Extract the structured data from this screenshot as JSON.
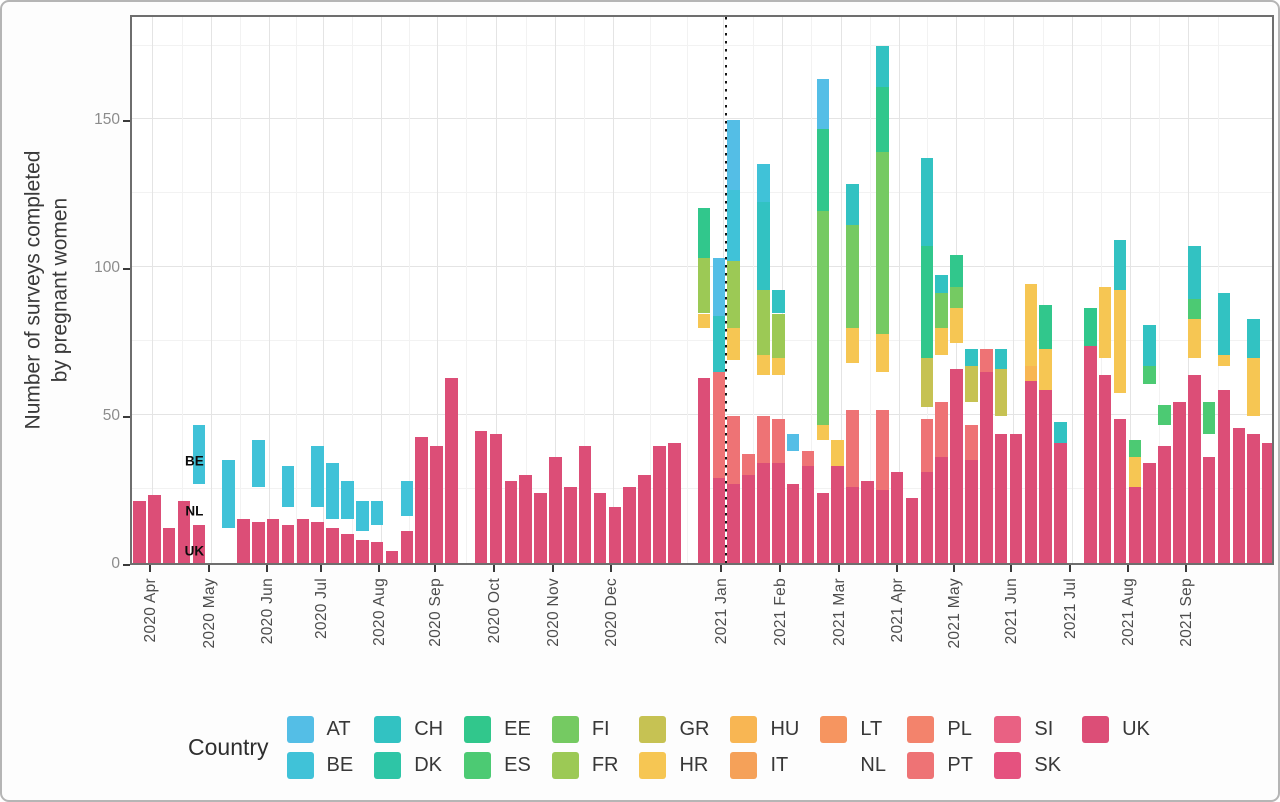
{
  "y_axis": {
    "title_lines": [
      "Number of surveys completed",
      "by pregnant women"
    ],
    "ticks": [
      0,
      50,
      100,
      150
    ],
    "minor_ticks": [
      25,
      75,
      125,
      175
    ]
  },
  "annotations": [
    {
      "text": "BE",
      "slot": 4.2,
      "value": 36
    },
    {
      "text": "NL",
      "slot": 4.2,
      "value": 19
    },
    {
      "text": "UK",
      "slot": 4.2,
      "value": 5.5
    }
  ],
  "legend": {
    "title": "Country",
    "columns": [
      [
        "AT",
        "BE"
      ],
      [
        "CH",
        "DK"
      ],
      [
        "EE",
        "ES"
      ],
      [
        "FI",
        "FR"
      ],
      [
        "GR",
        "HR"
      ],
      [
        "HU",
        "IT"
      ],
      [
        "LT",
        "NL"
      ],
      [
        "PL",
        "PT"
      ],
      [
        "SI",
        "SK"
      ],
      [
        "UK"
      ]
    ]
  },
  "colors": {
    "AT": "#54bee6",
    "BE": "#40c2d8",
    "CH": "#32c2c2",
    "DK": "#2ec5a6",
    "EE": "#31c78c",
    "ES": "#4cca73",
    "FI": "#75ca62",
    "FR": "#9cc955",
    "GR": "#c6c253",
    "HR": "#f6c653",
    "HU": "#f8b653",
    "IT": "#f5a159",
    "LT": "#f69560",
    "PL": "#f3836c",
    "PT": "#ee7375",
    "SI": "#e96183",
    "SK": "#e5527f",
    "UK": "#dc4e77"
  },
  "chart_data": {
    "type": "bar",
    "stacked": true,
    "x_unit": "week",
    "x_range": "2020 Apr - 2021 Sep",
    "n_slots": 77,
    "ylim": [
      0,
      186
    ],
    "yticks": [
      0,
      50,
      100,
      150
    ],
    "ylabel": "Number of surveys completed by pregnant women",
    "xlabel": "",
    "grid": true,
    "legend_position": "bottom",
    "reference_line_slot": 40,
    "stack_order_bottom_to_top": [
      "UK",
      "SK",
      "SI",
      "PT",
      "PL",
      "NL",
      "LT",
      "IT",
      "HU",
      "HR",
      "GR",
      "FR",
      "FI",
      "ES",
      "EE",
      "DK",
      "CH",
      "BE",
      "AT"
    ],
    "month_ticks": [
      {
        "label": "2020 Apr",
        "slot": 1.34
      },
      {
        "label": "2020 May",
        "slot": 5.35
      },
      {
        "label": "2020 Jun",
        "slot": 9.23
      },
      {
        "label": "2020 Jul",
        "slot": 12.84
      },
      {
        "label": "2020 Aug",
        "slot": 16.79
      },
      {
        "label": "2020 Sep",
        "slot": 20.5
      },
      {
        "label": "2020 Oct",
        "slot": 24.5
      },
      {
        "label": "2020 Nov",
        "slot": 28.5
      },
      {
        "label": "2020 Dec",
        "slot": 32.4
      },
      {
        "label": "2021 Jan",
        "slot": 39.8
      },
      {
        "label": "2021 Feb",
        "slot": 43.75
      },
      {
        "label": "2021 Mar",
        "slot": 47.7
      },
      {
        "label": "2021 Apr",
        "slot": 51.6
      },
      {
        "label": "2021 May",
        "slot": 55.45
      },
      {
        "label": "2021 Jun",
        "slot": 59.3
      },
      {
        "label": "2021 Jul",
        "slot": 63.3
      },
      {
        "label": "2021 Aug",
        "slot": 67.2
      },
      {
        "label": "2021 Sep",
        "slot": 71.1
      }
    ],
    "bars": [
      [
        [
          "UK",
          21
        ]
      ],
      [
        [
          "UK",
          23
        ]
      ],
      [
        [
          "UK",
          12
        ]
      ],
      [
        [
          "UK",
          21
        ]
      ],
      [
        [
          "UK",
          13
        ],
        [
          "NL",
          14
        ],
        [
          "BE",
          20
        ]
      ],
      [],
      [
        [
          "NL",
          12
        ],
        [
          "BE",
          23
        ]
      ],
      [
        [
          "UK",
          15
        ]
      ],
      [
        [
          "UK",
          14
        ],
        [
          "NL",
          12
        ],
        [
          "BE",
          16
        ]
      ],
      [
        [
          "UK",
          15
        ]
      ],
      [
        [
          "UK",
          13
        ],
        [
          "NL",
          6
        ],
        [
          "BE",
          14
        ]
      ],
      [
        [
          "UK",
          15
        ]
      ],
      [
        [
          "UK",
          14
        ],
        [
          "NL",
          5
        ],
        [
          "BE",
          21
        ]
      ],
      [
        [
          "UK",
          12
        ],
        [
          "NL",
          3
        ],
        [
          "BE",
          19
        ]
      ],
      [
        [
          "UK",
          10
        ],
        [
          "NL",
          5
        ],
        [
          "BE",
          13
        ]
      ],
      [
        [
          "UK",
          8
        ],
        [
          "NL",
          3
        ],
        [
          "BE",
          10
        ]
      ],
      [
        [
          "UK",
          7
        ],
        [
          "NL",
          6
        ],
        [
          "BE",
          8
        ]
      ],
      [
        [
          "UK",
          4
        ]
      ],
      [
        [
          "UK",
          11
        ],
        [
          "NL",
          5
        ],
        [
          "BE",
          12
        ]
      ],
      [
        [
          "UK",
          43
        ]
      ],
      [
        [
          "UK",
          40
        ]
      ],
      [
        [
          "UK",
          63
        ]
      ],
      [],
      [
        [
          "UK",
          45
        ]
      ],
      [
        [
          "UK",
          44
        ]
      ],
      [
        [
          "UK",
          28
        ]
      ],
      [
        [
          "UK",
          30
        ]
      ],
      [
        [
          "UK",
          24
        ]
      ],
      [
        [
          "UK",
          36
        ]
      ],
      [
        [
          "UK",
          26
        ]
      ],
      [
        [
          "UK",
          40
        ]
      ],
      [
        [
          "UK",
          24
        ]
      ],
      [
        [
          "UK",
          19
        ]
      ],
      [
        [
          "UK",
          26
        ]
      ],
      [
        [
          "UK",
          30
        ]
      ],
      [
        [
          "UK",
          40
        ]
      ],
      [
        [
          "UK",
          41
        ]
      ],
      [],
      [
        [
          "UK",
          63
        ],
        [
          "NL",
          17
        ],
        [
          "HR",
          5
        ],
        [
          "FR",
          19
        ],
        [
          "EE",
          17
        ]
      ],
      [
        [
          "UK",
          29
        ],
        [
          "PT",
          36
        ],
        [
          "CH",
          19
        ],
        [
          "AT",
          20
        ]
      ],
      [
        [
          "UK",
          27
        ],
        [
          "PT",
          23
        ],
        [
          "NL",
          19
        ],
        [
          "HR",
          11
        ],
        [
          "FR",
          23
        ],
        [
          "BE",
          24
        ],
        [
          "AT",
          24
        ]
      ],
      [
        [
          "UK",
          30
        ],
        [
          "PT",
          7
        ]
      ],
      [
        [
          "UK",
          34
        ],
        [
          "PT",
          16
        ],
        [
          "NL",
          14
        ],
        [
          "HR",
          7
        ],
        [
          "FR",
          22
        ],
        [
          "CH",
          30
        ],
        [
          "BE",
          13
        ]
      ],
      [
        [
          "UK",
          34
        ],
        [
          "PT",
          15
        ],
        [
          "NL",
          15
        ],
        [
          "HR",
          6
        ],
        [
          "FR",
          15
        ],
        [
          "CH",
          8
        ]
      ],
      [
        [
          "UK",
          27
        ],
        [
          "NL",
          11
        ],
        [
          "AT",
          6
        ]
      ],
      [
        [
          "UK",
          33
        ],
        [
          "PT",
          5
        ]
      ],
      [
        [
          "UK",
          24
        ],
        [
          "NL",
          18
        ],
        [
          "HR",
          5
        ],
        [
          "FI",
          73
        ],
        [
          "EE",
          28
        ],
        [
          "AT",
          17
        ]
      ],
      [
        [
          "UK",
          33
        ],
        [
          "HR",
          9
        ]
      ],
      [
        [
          "UK",
          26
        ],
        [
          "PT",
          26
        ],
        [
          "NL",
          16
        ],
        [
          "HR",
          12
        ],
        [
          "FI",
          35
        ],
        [
          "CH",
          14
        ]
      ],
      [
        [
          "UK",
          28
        ]
      ],
      [
        [
          "UK",
          25
        ],
        [
          "PT",
          27
        ],
        [
          "NL",
          13
        ],
        [
          "HR",
          13
        ],
        [
          "FI",
          62
        ],
        [
          "EE",
          22
        ],
        [
          "CH",
          14
        ]
      ],
      [
        [
          "UK",
          31
        ]
      ],
      [
        [
          "UK",
          22
        ]
      ],
      [
        [
          "UK",
          31
        ],
        [
          "PT",
          18
        ],
        [
          "NL",
          4
        ],
        [
          "GR",
          17
        ],
        [
          "EE",
          38
        ],
        [
          "CH",
          30
        ]
      ],
      [
        [
          "UK",
          36
        ],
        [
          "PT",
          19
        ],
        [
          "NL",
          16
        ],
        [
          "HR",
          9
        ],
        [
          "FI",
          12
        ],
        [
          "CH",
          6
        ]
      ],
      [
        [
          "UK",
          66
        ],
        [
          "NL",
          9
        ],
        [
          "HR",
          12
        ],
        [
          "FI",
          7
        ],
        [
          "EE",
          11
        ]
      ],
      [
        [
          "UK",
          35
        ],
        [
          "PT",
          12
        ],
        [
          "NL",
          8
        ],
        [
          "GR",
          12
        ],
        [
          "CH",
          6
        ]
      ],
      [
        [
          "UK",
          65
        ],
        [
          "PT",
          8
        ]
      ],
      [
        [
          "UK",
          44
        ],
        [
          "NL",
          6
        ],
        [
          "GR",
          16
        ],
        [
          "CH",
          7
        ]
      ],
      [
        [
          "UK",
          44
        ]
      ],
      [
        [
          "UK",
          62
        ],
        [
          "HU",
          5
        ],
        [
          "HR",
          28
        ]
      ],
      [
        [
          "UK",
          59
        ],
        [
          "HR",
          14
        ],
        [
          "EE",
          15
        ]
      ],
      [
        [
          "UK",
          41
        ],
        [
          "CH",
          7
        ]
      ],
      [],
      [
        [
          "UK",
          74
        ],
        [
          "EE",
          13
        ]
      ],
      [
        [
          "UK",
          64
        ],
        [
          "NL",
          6
        ],
        [
          "HR",
          24
        ]
      ],
      [
        [
          "UK",
          49
        ],
        [
          "NL",
          9
        ],
        [
          "HR",
          35
        ],
        [
          "CH",
          17
        ]
      ],
      [
        [
          "UK",
          26
        ],
        [
          "HR",
          10
        ],
        [
          "ES",
          6
        ]
      ],
      [
        [
          "UK",
          34
        ],
        [
          "NL",
          27
        ],
        [
          "ES",
          6
        ],
        [
          "CH",
          14
        ]
      ],
      [
        [
          "UK",
          40
        ],
        [
          "NL",
          7
        ],
        [
          "ES",
          7
        ]
      ],
      [
        [
          "UK",
          55
        ]
      ],
      [
        [
          "UK",
          64
        ],
        [
          "NL",
          6
        ],
        [
          "HR",
          13
        ],
        [
          "ES",
          7
        ],
        [
          "CH",
          18
        ]
      ],
      [
        [
          "UK",
          36
        ],
        [
          "NL",
          8
        ],
        [
          "ES",
          11
        ]
      ],
      [
        [
          "UK",
          59
        ],
        [
          "NL",
          8
        ],
        [
          "HR",
          4
        ],
        [
          "CH",
          21
        ]
      ],
      [
        [
          "UK",
          46
        ]
      ],
      [
        [
          "UK",
          44
        ],
        [
          "NL",
          6
        ],
        [
          "HR",
          20
        ],
        [
          "CH",
          13
        ]
      ],
      [
        [
          "UK",
          41
        ]
      ]
    ]
  }
}
